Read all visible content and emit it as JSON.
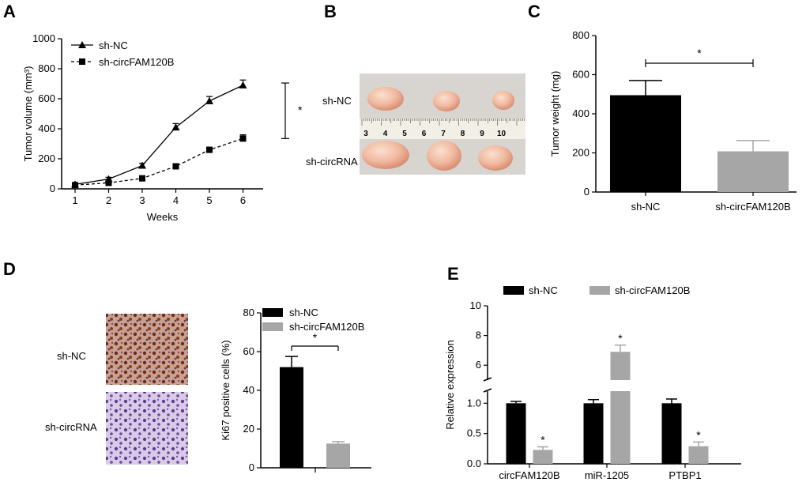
{
  "panels": {
    "A": {
      "letter": "A"
    },
    "B": {
      "letter": "B",
      "row_labels": [
        "sh-NC",
        "sh-circRNA"
      ],
      "ruler_labels": [
        "3",
        "4",
        "5",
        "6",
        "7",
        "8",
        "9",
        "10"
      ]
    },
    "C": {
      "letter": "C"
    },
    "D": {
      "letter": "D",
      "row_labels": [
        "sh-NC",
        "sh-circRNA"
      ]
    },
    "E": {
      "letter": "E"
    }
  },
  "chart_data": [
    {
      "panel": "A",
      "type": "line",
      "xlabel": "Weeks",
      "ylabel": "Tumor volume (mm³)",
      "x": [
        1,
        2,
        3,
        4,
        5,
        6
      ],
      "xlim": [
        0.6,
        6.6
      ],
      "ylim": [
        0,
        1000
      ],
      "yticks": [
        0,
        200,
        400,
        600,
        800,
        1000
      ],
      "series": [
        {
          "name": "sh-NC",
          "marker": "triangle",
          "dash": false,
          "values": [
            30,
            65,
            155,
            410,
            585,
            690
          ],
          "errors": [
            8,
            12,
            15,
            25,
            30,
            35
          ]
        },
        {
          "name": "sh-circFAM120B",
          "marker": "square",
          "dash": true,
          "values": [
            25,
            40,
            70,
            150,
            260,
            335
          ],
          "errors": [
            6,
            8,
            10,
            12,
            18,
            25
          ]
        }
      ],
      "significance": "*"
    },
    {
      "panel": "C",
      "type": "bar",
      "categories": [
        "sh-NC",
        "sh-circFAM120B"
      ],
      "values": [
        495,
        208
      ],
      "errors": [
        75,
        55
      ],
      "colors": [
        "#000000",
        "#a6a6a6"
      ],
      "ylabel": "Tumor weight (mg)",
      "ylim": [
        0,
        800
      ],
      "yticks": [
        0,
        200,
        400,
        600,
        800
      ],
      "significance": "*"
    },
    {
      "panel": "D",
      "type": "bar",
      "series": [
        {
          "name": "sh-NC",
          "value": 52,
          "error": 5.5,
          "color": "#000000"
        },
        {
          "name": "sh-circFAM120B",
          "value": 12.5,
          "error": 1,
          "color": "#a6a6a6"
        }
      ],
      "ylabel": "Ki67 positive cells (%)",
      "ylim": [
        0,
        80
      ],
      "yticks": [
        0,
        20,
        40,
        60,
        80
      ],
      "significance": "*"
    },
    {
      "panel": "E",
      "type": "bar",
      "categories": [
        "circFAM120B",
        "miR-1205",
        "PTBP1"
      ],
      "series": [
        {
          "name": "sh-NC",
          "color": "#000000",
          "values": [
            1.0,
            1.0,
            1.0
          ],
          "errors": [
            0.03,
            0.06,
            0.07
          ]
        },
        {
          "name": "sh-circFAM120B",
          "color": "#a6a6a6",
          "values": [
            0.23,
            6.9,
            0.29
          ],
          "errors": [
            0.05,
            0.45,
            0.07
          ]
        }
      ],
      "ylabel": "Relative expression",
      "broken_axis": {
        "lower": [
          0,
          1.2
        ],
        "upper": [
          5,
          10
        ]
      },
      "yticks_lower": [
        "0.0",
        "0.5",
        "1.0"
      ],
      "yticks_upper": [
        "6",
        "8",
        "10"
      ],
      "significance": [
        "*",
        "*",
        "*"
      ]
    }
  ]
}
